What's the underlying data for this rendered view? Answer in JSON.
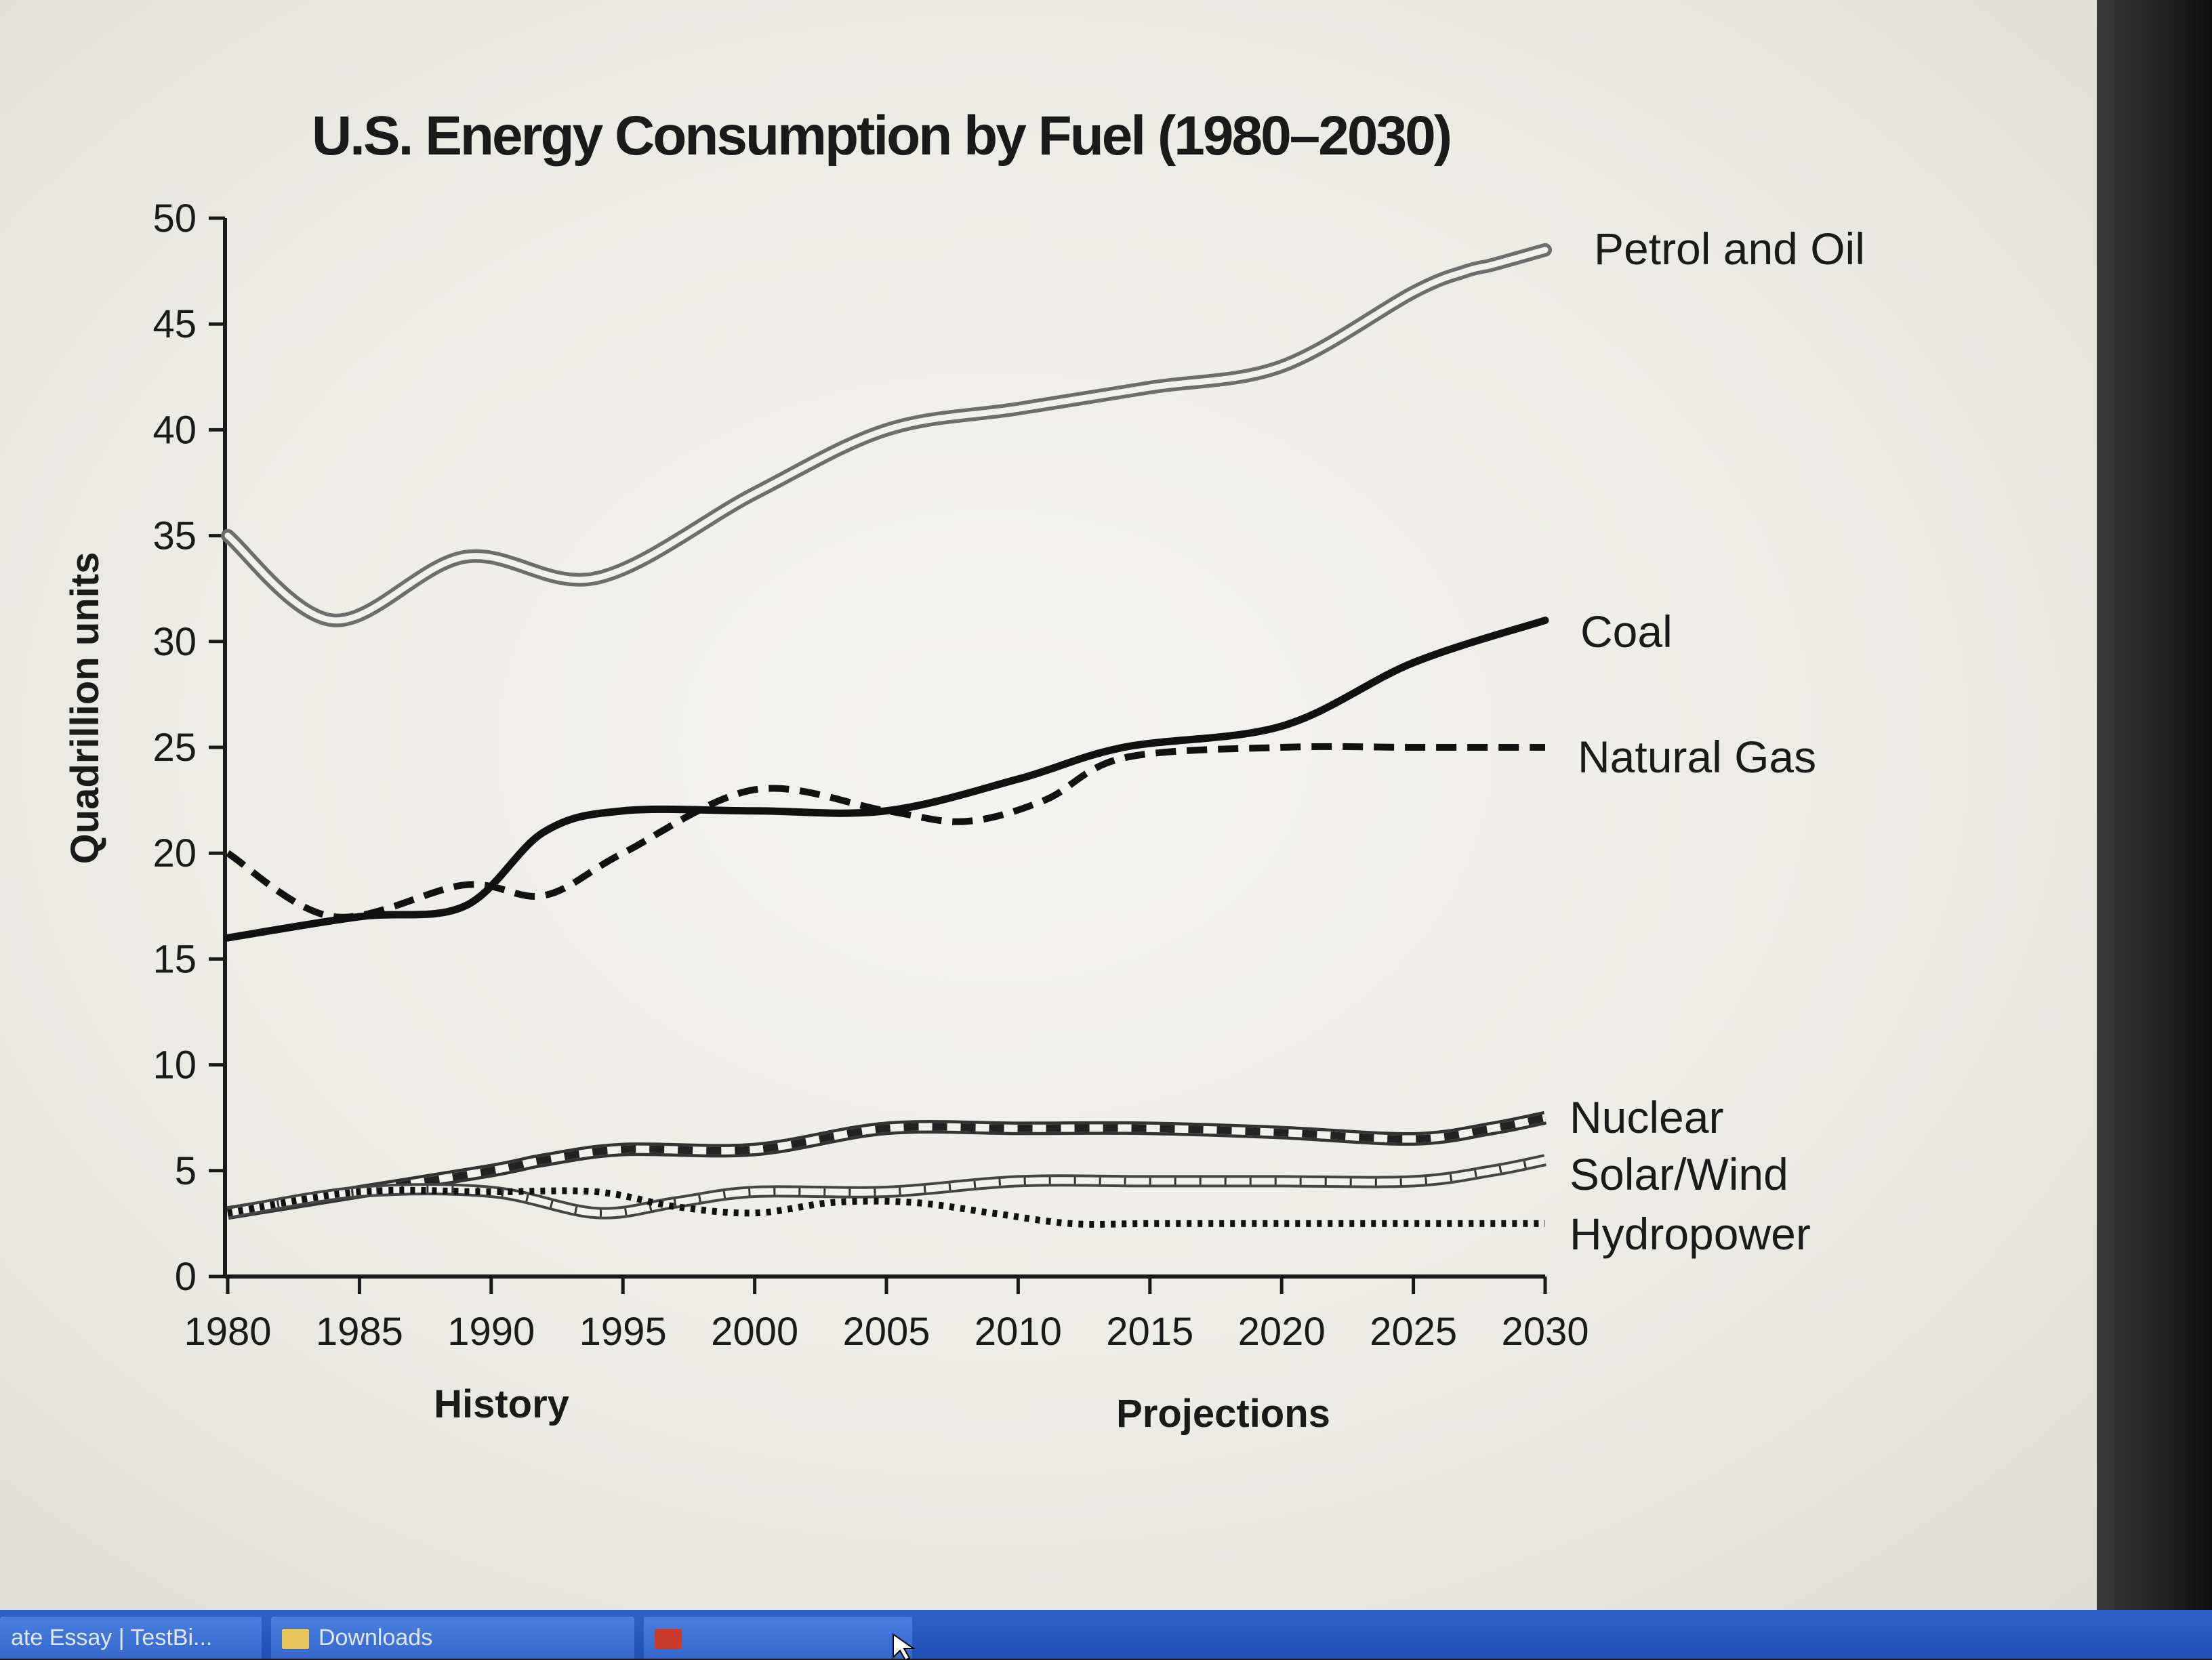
{
  "chart_data": {
    "type": "line",
    "title": "U.S. Energy Consumption by Fuel (1980–2030)",
    "ylabel": "Quadrillion units",
    "xlabel_left": "History",
    "xlabel_right": "Projections",
    "ylim": [
      0,
      50
    ],
    "xlim": [
      1980,
      2030
    ],
    "yticks": [
      "0",
      "5",
      "10",
      "15",
      "20",
      "25",
      "30",
      "35",
      "40",
      "45",
      "50"
    ],
    "xticks": [
      "1980",
      "1985",
      "1990",
      "1995",
      "2000",
      "2005",
      "2010",
      "2015",
      "2020",
      "2025",
      "2030"
    ],
    "series": [
      {
        "name": "Petrol and Oil",
        "style": "double",
        "x": [
          1980,
          1984,
          1989,
          1994,
          2000,
          2005,
          2010,
          2015,
          2020,
          2025,
          2027,
          2028,
          2030
        ],
        "values": [
          35,
          31,
          34,
          33,
          37,
          40,
          41,
          42,
          43,
          46.5,
          47.5,
          47.8,
          48.5
        ]
      },
      {
        "name": "Coal",
        "style": "solid",
        "x": [
          1980,
          1985,
          1989,
          1992,
          1995,
          2000,
          2005,
          2010,
          2014,
          2020,
          2025,
          2030
        ],
        "values": [
          16,
          17,
          17.5,
          21,
          22,
          22,
          22,
          23.5,
          25,
          26,
          29,
          31
        ]
      },
      {
        "name": "Natural Gas",
        "style": "dashed",
        "x": [
          1980,
          1984,
          1989,
          1992,
          1995,
          2000,
          2005,
          2008,
          2011,
          2014,
          2020,
          2025,
          2030
        ],
        "values": [
          20,
          17,
          18.5,
          18,
          20,
          23,
          22,
          21.5,
          22.5,
          24.5,
          25,
          25,
          25
        ]
      },
      {
        "name": "Nuclear",
        "style": "banded",
        "x": [
          1980,
          1985,
          1990,
          1992,
          1995,
          2000,
          2005,
          2010,
          2015,
          2020,
          2025,
          2028,
          2030
        ],
        "values": [
          3,
          4,
          5,
          5.5,
          6,
          6,
          7,
          7,
          7,
          6.8,
          6.5,
          7,
          7.5
        ]
      },
      {
        "name": "Solar/Wind",
        "style": "hatched",
        "x": [
          1980,
          1985,
          1990,
          1994,
          1997,
          2000,
          2005,
          2010,
          2015,
          2020,
          2025,
          2028,
          2030
        ],
        "values": [
          3,
          4,
          4,
          3,
          3.5,
          4,
          4,
          4.5,
          4.5,
          4.5,
          4.5,
          5,
          5.5
        ]
      },
      {
        "name": "Hydropower",
        "style": "dotted",
        "x": [
          1980,
          1985,
          1990,
          1994,
          1997,
          2000,
          2003,
          2006,
          2009,
          2012,
          2015,
          2020,
          2025,
          2030
        ],
        "values": [
          3,
          4,
          4,
          4,
          3.3,
          3,
          3.5,
          3.5,
          3,
          2.5,
          2.5,
          2.5,
          2.5,
          2.5
        ]
      }
    ]
  },
  "taskbar": {
    "items": [
      "ate Essay | TestBi...",
      "Downloads",
      ""
    ]
  }
}
